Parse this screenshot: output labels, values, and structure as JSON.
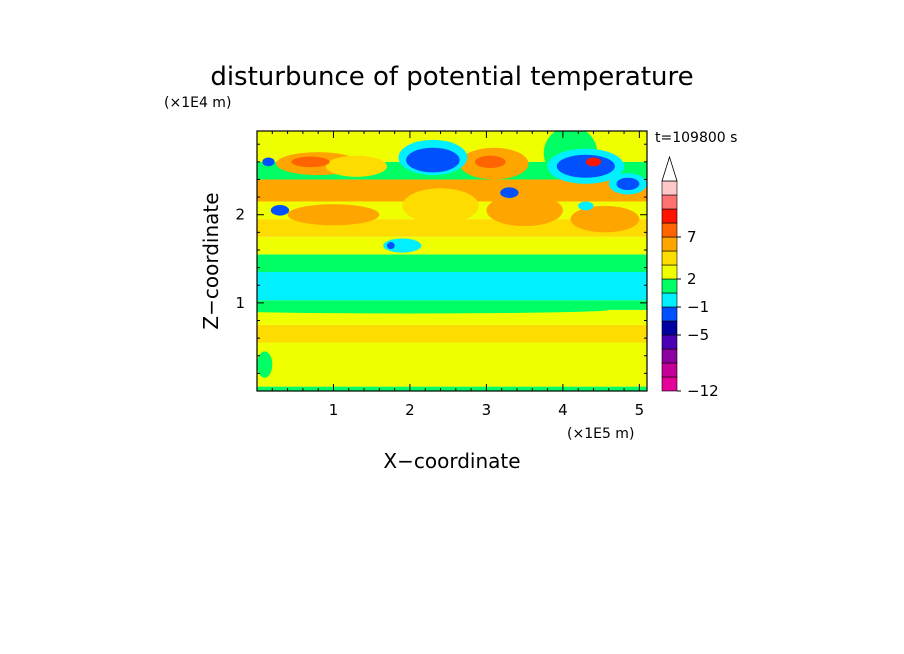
{
  "chart_data": {
    "type": "heatmap",
    "title": "disturbunce of potential temperature",
    "time_label": "t=109800 s",
    "xlabel": "X−coordinate",
    "ylabel": "Z−coordinate",
    "x_scale_label": "(×1E5 m)",
    "y_scale_label": "(×1E4 m)",
    "xlim": [
      0,
      5.1
    ],
    "ylim": [
      0,
      2.95
    ],
    "x_ticks": [
      1,
      2,
      3,
      4,
      5
    ],
    "y_ticks": [
      1,
      2
    ],
    "x_tick_labels": [
      "1",
      "2",
      "3",
      "4",
      "5"
    ],
    "y_tick_labels": [
      "1",
      "2"
    ],
    "colorbar": {
      "colors": [
        "#e6009a",
        "#c40096",
        "#8c00a0",
        "#4c00b4",
        "#0000a0",
        "#0050ff",
        "#00f0ff",
        "#00ff64",
        "#f0ff00",
        "#ffdc00",
        "#ffa500",
        "#ff6400",
        "#ff1400",
        "#ff7070",
        "#ffc8c8"
      ],
      "tick_labels": [
        "−12",
        "−5",
        "−1",
        "2",
        "7"
      ],
      "extend_top": true
    },
    "bands": [
      {
        "z": [
          0.0,
          0.05
        ],
        "level": 7
      },
      {
        "z": [
          0.05,
          0.55
        ],
        "level": 8
      },
      {
        "z": [
          0.55,
          0.75
        ],
        "level": 9
      },
      {
        "z": [
          0.75,
          0.92
        ],
        "level": 8
      },
      {
        "z": [
          0.92,
          1.03
        ],
        "level": 7
      },
      {
        "z": [
          1.03,
          1.35
        ],
        "level": 6
      },
      {
        "z": [
          1.35,
          1.55
        ],
        "level": 7
      },
      {
        "z": [
          1.55,
          1.75
        ],
        "level": 8
      },
      {
        "z": [
          1.75,
          1.95
        ],
        "level": 9
      },
      {
        "z": [
          1.95,
          2.15
        ],
        "level": 8
      },
      {
        "z": [
          2.15,
          2.4
        ],
        "level": 10
      },
      {
        "z": [
          2.4,
          2.6
        ],
        "level": 7
      },
      {
        "z": [
          2.6,
          2.95
        ],
        "level": 8
      }
    ],
    "blobs": [
      {
        "x": 0.8,
        "z": 2.58,
        "rx": 0.55,
        "rz": 0.13,
        "level": 10
      },
      {
        "x": 1.3,
        "z": 2.55,
        "rx": 0.4,
        "rz": 0.12,
        "level": 9
      },
      {
        "x": 1.0,
        "z": 2.0,
        "rx": 0.6,
        "rz": 0.12,
        "level": 10
      },
      {
        "x": 2.4,
        "z": 2.1,
        "rx": 0.5,
        "rz": 0.2,
        "level": 9
      },
      {
        "x": 3.5,
        "z": 2.05,
        "rx": 0.5,
        "rz": 0.18,
        "level": 10
      },
      {
        "x": 3.1,
        "z": 2.58,
        "rx": 0.45,
        "rz": 0.18,
        "level": 10
      },
      {
        "x": 3.05,
        "z": 2.6,
        "rx": 0.2,
        "rz": 0.07,
        "level": 11
      },
      {
        "x": 0.7,
        "z": 2.6,
        "rx": 0.25,
        "rz": 0.06,
        "level": 11
      },
      {
        "x": 4.55,
        "z": 1.95,
        "rx": 0.45,
        "rz": 0.15,
        "level": 10
      },
      {
        "x": 4.1,
        "z": 2.7,
        "rx": 0.35,
        "rz": 0.3,
        "level": 7
      },
      {
        "x": 4.3,
        "z": 2.55,
        "rx": 0.5,
        "rz": 0.2,
        "level": 6
      },
      {
        "x": 4.3,
        "z": 2.55,
        "rx": 0.38,
        "rz": 0.13,
        "level": 5
      },
      {
        "x": 4.4,
        "z": 2.6,
        "rx": 0.1,
        "rz": 0.05,
        "level": 12
      },
      {
        "x": 4.85,
        "z": 2.35,
        "rx": 0.25,
        "rz": 0.12,
        "level": 6
      },
      {
        "x": 4.85,
        "z": 2.35,
        "rx": 0.15,
        "rz": 0.07,
        "level": 5
      },
      {
        "x": 2.3,
        "z": 2.65,
        "rx": 0.45,
        "rz": 0.2,
        "level": 6
      },
      {
        "x": 2.3,
        "z": 2.62,
        "rx": 0.35,
        "rz": 0.14,
        "level": 5
      },
      {
        "x": 1.9,
        "z": 1.65,
        "rx": 0.25,
        "rz": 0.08,
        "level": 6
      },
      {
        "x": 1.75,
        "z": 1.65,
        "rx": 0.05,
        "rz": 0.04,
        "level": 5
      },
      {
        "x": 0.3,
        "z": 2.05,
        "rx": 0.12,
        "rz": 0.06,
        "level": 5
      },
      {
        "x": 0.15,
        "z": 2.6,
        "rx": 0.08,
        "rz": 0.05,
        "level": 5
      },
      {
        "x": 3.3,
        "z": 2.25,
        "rx": 0.12,
        "rz": 0.06,
        "level": 5
      },
      {
        "x": 4.3,
        "z": 2.1,
        "rx": 0.1,
        "rz": 0.05,
        "level": 6
      },
      {
        "x": 2.0,
        "z": 0.92,
        "rx": 2.6,
        "rz": 0.04,
        "level": 7
      },
      {
        "x": 0.1,
        "z": 0.3,
        "rx": 0.1,
        "rz": 0.15,
        "level": 7
      }
    ]
  }
}
